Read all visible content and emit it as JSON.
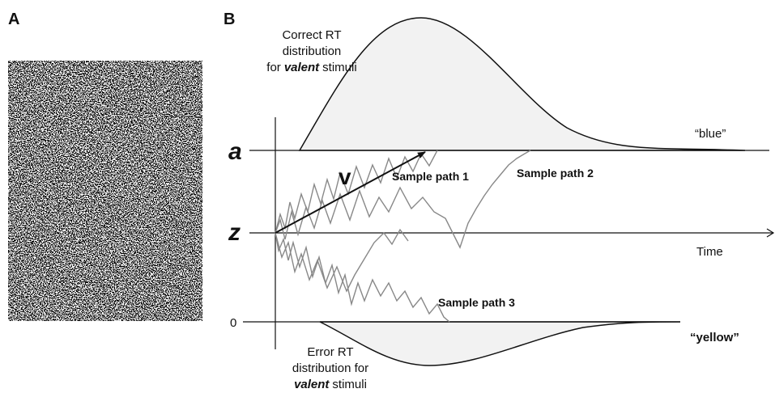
{
  "panel_a": {
    "label": "A"
  },
  "panel_b": {
    "label": "B",
    "correct_rt": {
      "line1": "Correct RT",
      "line2": "distribution",
      "line3": {
        "pre": "for",
        "emphasis": "valent",
        "post": "stimuli"
      }
    },
    "error_rt": {
      "line1": "Error RT",
      "line2": "distribution for",
      "line3": {
        "emphasis": "valent",
        "post": "stimuli"
      }
    },
    "upper_response": "“blue”",
    "lower_response": "“yellow”",
    "boundary_a": "a",
    "start_z": "z",
    "zero": "0",
    "drift": "v",
    "time_axis": "Time",
    "sample_paths": [
      "Sample path 1",
      "Sample path 2",
      "Sample path 3"
    ]
  }
}
